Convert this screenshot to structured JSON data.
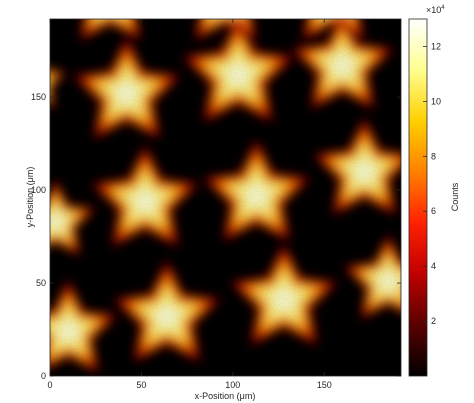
{
  "chart_data": {
    "type": "heatmap",
    "title": "",
    "xlabel": "x-Position (μm)",
    "ylabel": "y-Position (μm)",
    "xlim": [
      0,
      192
    ],
    "ylim": [
      0,
      192
    ],
    "xticks": [
      0,
      50,
      100,
      150
    ],
    "yticks": [
      0,
      50,
      100,
      150
    ],
    "colorbar": {
      "label": "Counts",
      "multiplier": "×10",
      "exponent": "4",
      "range": [
        0,
        13
      ],
      "ticks": [
        2,
        4,
        6,
        8,
        10,
        12
      ],
      "colormap": [
        "#000000",
        "#5a0000",
        "#c00000",
        "#ff2000",
        "#ff8000",
        "#ffd000",
        "#ffff90",
        "#ffffff"
      ]
    },
    "pattern": "star-shaped bright regions on a dark background",
    "stars": [
      {
        "x": 33,
        "y": 203,
        "peak": 11
      },
      {
        "x": 96,
        "y": 203,
        "peak": 11
      },
      {
        "x": 155,
        "y": 203,
        "peak": 11
      },
      {
        "x": 42,
        "y": 152,
        "peak": 12
      },
      {
        "x": 103,
        "y": 162,
        "peak": 12.5
      },
      {
        "x": 160,
        "y": 167,
        "peak": 11.5
      },
      {
        "x": -8,
        "y": 158,
        "peak": 7
      },
      {
        "x": 52,
        "y": 94,
        "peak": 12
      },
      {
        "x": 113,
        "y": 97,
        "peak": 12
      },
      {
        "x": 172,
        "y": 110,
        "peak": 11.5
      },
      {
        "x": 3,
        "y": 83,
        "peak": 9
      },
      {
        "x": 10,
        "y": 24,
        "peak": 11
      },
      {
        "x": 64,
        "y": 32,
        "peak": 12
      },
      {
        "x": 128,
        "y": 41,
        "peak": 12
      },
      {
        "x": 185,
        "y": 51,
        "peak": 10
      }
    ]
  }
}
